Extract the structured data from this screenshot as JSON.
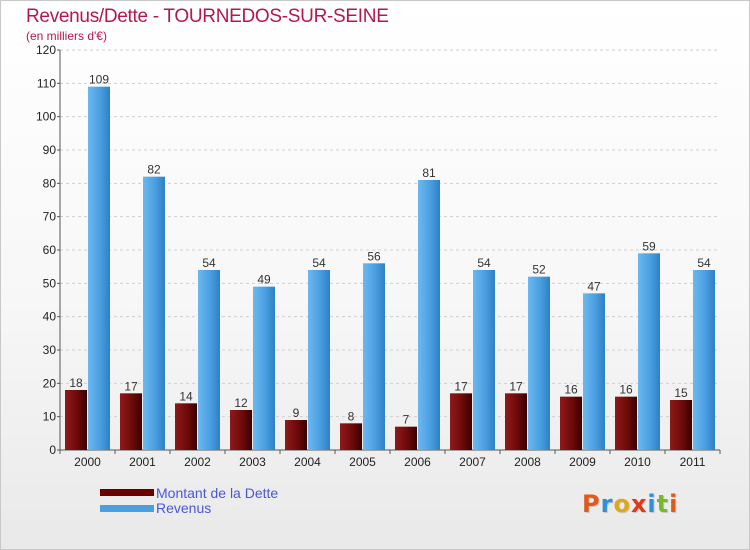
{
  "title": "Revenus/Dette - TOURNEDOS-SUR-SEINE",
  "subtitle": "(en milliers d'€)",
  "chart_data": {
    "type": "bar",
    "title": "Revenus/Dette - TOURNEDOS-SUR-SEINE",
    "subtitle": "(en milliers d'€)",
    "categories": [
      "2000",
      "2001",
      "2002",
      "2003",
      "2004",
      "2005",
      "2006",
      "2007",
      "2008",
      "2009",
      "2010",
      "2011"
    ],
    "series": [
      {
        "name": "Montant de la Dette",
        "color": "#7a0e0e",
        "values": [
          18,
          17,
          14,
          12,
          9,
          8,
          7,
          17,
          17,
          16,
          16,
          15
        ]
      },
      {
        "name": "Revenus",
        "color": "#4a9fe0",
        "values": [
          109,
          82,
          54,
          49,
          54,
          56,
          81,
          54,
          52,
          47,
          59,
          54
        ]
      }
    ],
    "ylim": [
      0,
      120
    ],
    "yticks": [
      0,
      10,
      20,
      30,
      40,
      50,
      60,
      70,
      80,
      90,
      100,
      110,
      120
    ],
    "grid": true,
    "legend": "bottom-left",
    "xlabel": "",
    "ylabel": ""
  },
  "legend": {
    "items": [
      {
        "label": "Montant de la Dette",
        "color": "#6b0000"
      },
      {
        "label": "Revenus",
        "color": "#4a9fe0"
      }
    ]
  },
  "logo": {
    "text": "Proxiti",
    "colors": [
      "#e05a1a",
      "#2f8fd8",
      "#e0a818",
      "#e03a1a",
      "#2f8fd8",
      "#78b82a",
      "#e05a1a"
    ]
  }
}
